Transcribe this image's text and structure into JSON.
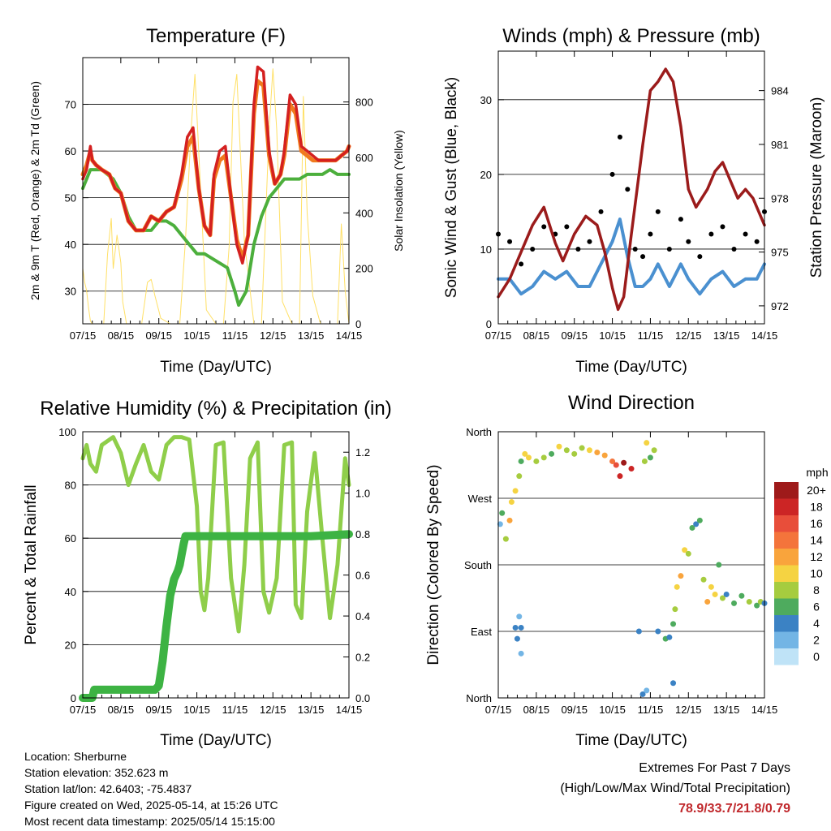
{
  "footer": {
    "location": "Location: Sherburne",
    "elevation": "Station elevation: 352.623 m",
    "latlon": "Station lat/lon: 42.6403; -75.4837",
    "created": "Figure created on Wed, 2025-05-14, at 15:26 UTC",
    "recent": "Most recent data timestamp: 2025/05/14 15:15:00",
    "extremes_title": "Extremes For Past 7 Days",
    "extremes_subtitle": "(High/Low/Max Wind/Total Precipitation)",
    "extremes_values": "78.9/33.7/21.8/0.79"
  },
  "chart_data": [
    {
      "type": "line",
      "title": "Temperature (F)",
      "xlabel": "Time (Day/UTC)",
      "ylabel": "2m & 9m T (Red, Orange) & 2m Td (Green)",
      "y2label": "Solar Insolation (Yellow)",
      "x_ticks": [
        "07/15",
        "08/15",
        "09/15",
        "10/15",
        "11/15",
        "12/15",
        "13/15",
        "14/15"
      ],
      "ylim": [
        23,
        80
      ],
      "y_ticks": [
        30,
        40,
        50,
        60,
        70
      ],
      "y2lim": [
        0,
        960
      ],
      "y2_ticks": [
        0,
        200,
        400,
        600,
        800
      ],
      "grid": "horizontal",
      "colors": {
        "t2m": "#d42020",
        "t9m": "#f07a1e",
        "td2m": "#4caf3c",
        "solar": "#ffe066"
      },
      "series": [
        {
          "key": "t2m",
          "x": [
            0,
            0.1,
            0.2,
            0.25,
            0.35,
            0.5,
            0.7,
            0.85,
            1.0,
            1.2,
            1.4,
            1.6,
            1.8,
            2.0,
            2.2,
            2.4,
            2.6,
            2.75,
            2.9,
            3.05,
            3.2,
            3.35,
            3.45,
            3.6,
            3.75,
            3.9,
            4.05,
            4.2,
            4.35,
            4.5,
            4.6,
            4.75,
            4.9,
            5.05,
            5.2,
            5.3,
            5.45,
            5.6,
            5.75,
            5.9,
            6.05,
            6.2,
            6.35,
            6.5,
            6.65,
            6.8,
            6.95,
            7.0
          ],
          "values": [
            54,
            56,
            61,
            58,
            57,
            56,
            55,
            52,
            51,
            45,
            43,
            43,
            46,
            45,
            47,
            48,
            55,
            63,
            65,
            52,
            44,
            42,
            55,
            60,
            61,
            50,
            40,
            36,
            42,
            70,
            78,
            77,
            60,
            53,
            55,
            60,
            72,
            70,
            61,
            60,
            59,
            58,
            58,
            58,
            58,
            59,
            60,
            61
          ]
        },
        {
          "key": "t9m",
          "x": [
            0,
            0.1,
            0.2,
            0.25,
            0.35,
            0.5,
            0.7,
            0.85,
            1.0,
            1.2,
            1.4,
            1.6,
            1.8,
            2.0,
            2.2,
            2.4,
            2.6,
            2.75,
            2.9,
            3.05,
            3.2,
            3.35,
            3.45,
            3.6,
            3.75,
            3.9,
            4.05,
            4.2,
            4.35,
            4.5,
            4.6,
            4.75,
            4.9,
            5.05,
            5.2,
            5.3,
            5.45,
            5.6,
            5.75,
            5.9,
            6.05,
            6.2,
            6.35,
            6.5,
            6.65,
            6.8,
            6.95,
            7.0
          ],
          "values": [
            55,
            57,
            60,
            58,
            57,
            56,
            55,
            52,
            51,
            45,
            43,
            43,
            46,
            45,
            47,
            48,
            54,
            61,
            63,
            52,
            44,
            42,
            54,
            58,
            59,
            50,
            41,
            37,
            42,
            68,
            75,
            74,
            59,
            53,
            55,
            59,
            70,
            68,
            60,
            59,
            58,
            58,
            58,
            58,
            58,
            59,
            60,
            61
          ]
        },
        {
          "key": "td2m",
          "x": [
            0,
            0.2,
            0.5,
            0.8,
            1.0,
            1.2,
            1.4,
            1.6,
            1.8,
            2.0,
            2.2,
            2.4,
            2.6,
            2.8,
            3.0,
            3.2,
            3.4,
            3.6,
            3.8,
            4.0,
            4.1,
            4.3,
            4.5,
            4.7,
            4.9,
            5.1,
            5.3,
            5.5,
            5.7,
            5.9,
            6.1,
            6.3,
            6.5,
            6.7,
            6.9,
            7.0
          ],
          "values": [
            52,
            56,
            56,
            54,
            51,
            46,
            43,
            43,
            43,
            45,
            45,
            44,
            42,
            40,
            38,
            38,
            37,
            36,
            35,
            30,
            27,
            30,
            40,
            46,
            50,
            52,
            54,
            54,
            54,
            55,
            55,
            55,
            56,
            55,
            55,
            55
          ]
        },
        {
          "key": "solar",
          "x": [
            0,
            0.05,
            0.1,
            0.15,
            0.2,
            0.25,
            0.35,
            0.55,
            0.65,
            0.75,
            0.8,
            0.9,
            1.0,
            1.05,
            1.15,
            1.3,
            1.55,
            1.7,
            1.8,
            1.9,
            2.05,
            2.3,
            2.55,
            2.7,
            2.85,
            2.95,
            3.05,
            3.25,
            3.5,
            3.7,
            3.85,
            3.95,
            4.05,
            4.25,
            4.5,
            4.7,
            4.9,
            5.0,
            5.1,
            5.25,
            5.5,
            5.7,
            5.8,
            5.9,
            6.05,
            6.25,
            6.5,
            6.7,
            6.8,
            6.9,
            7.0
          ],
          "values": [
            200,
            150,
            120,
            60,
            10,
            0,
            0,
            0,
            250,
            380,
            200,
            320,
            220,
            80,
            0,
            0,
            0,
            150,
            160,
            100,
            20,
            0,
            0,
            300,
            700,
            900,
            620,
            50,
            0,
            0,
            280,
            800,
            900,
            300,
            0,
            0,
            700,
            920,
            700,
            80,
            0,
            0,
            820,
            400,
            100,
            0,
            0,
            0,
            360,
            120,
            0
          ]
        }
      ]
    },
    {
      "type": "scatter",
      "title": "Winds (mph) & Pressure (mb)",
      "xlabel": "Time (Day/UTC)",
      "ylabel": "Sonic Wind & Gust (Blue, Black)",
      "y2label": "Station Pressure (Maroon)",
      "x_ticks": [
        "07/15",
        "08/15",
        "09/15",
        "10/15",
        "11/15",
        "12/15",
        "13/15",
        "14/15"
      ],
      "ylim": [
        0,
        36.5
      ],
      "y_ticks": [
        0,
        10,
        20,
        30
      ],
      "y2lim": [
        971,
        986.2
      ],
      "y2_ticks": [
        972,
        975,
        978,
        981,
        984
      ],
      "grid": "horizontal",
      "colors": {
        "wind": "#4a90d0",
        "gust": "#000000",
        "pressure": "#9b1b1b"
      },
      "series": [
        {
          "key": "gust",
          "x": [
            0,
            0.3,
            0.6,
            0.9,
            1.2,
            1.5,
            1.8,
            2.1,
            2.4,
            2.7,
            3.0,
            3.2,
            3.4,
            3.6,
            3.8,
            4.0,
            4.2,
            4.5,
            4.8,
            5.0,
            5.3,
            5.6,
            5.9,
            6.2,
            6.5,
            6.8,
            7.0
          ],
          "values": [
            12,
            11,
            8,
            10,
            13,
            12,
            13,
            10,
            11,
            15,
            20,
            25,
            18,
            10,
            9,
            12,
            15,
            10,
            14,
            11,
            9,
            12,
            13,
            10,
            12,
            11,
            15
          ]
        },
        {
          "key": "wind",
          "x": [
            0,
            0.3,
            0.6,
            0.9,
            1.2,
            1.5,
            1.8,
            2.1,
            2.4,
            2.7,
            3.0,
            3.2,
            3.4,
            3.6,
            3.8,
            4.0,
            4.2,
            4.5,
            4.8,
            5.0,
            5.3,
            5.6,
            5.9,
            6.2,
            6.5,
            6.8,
            7.0
          ],
          "values": [
            6,
            6,
            4,
            5,
            7,
            6,
            7,
            5,
            5,
            8,
            11,
            14,
            9,
            5,
            5,
            6,
            8,
            5,
            8,
            6,
            4,
            6,
            7,
            5,
            6,
            6,
            8
          ]
        },
        {
          "key": "pressure",
          "x": [
            0,
            0.3,
            0.6,
            0.9,
            1.2,
            1.5,
            1.7,
            2.0,
            2.3,
            2.6,
            2.8,
            3.0,
            3.15,
            3.3,
            3.5,
            3.8,
            4.0,
            4.2,
            4.4,
            4.6,
            4.8,
            5.0,
            5.2,
            5.5,
            5.7,
            5.9,
            6.1,
            6.3,
            6.5,
            6.7,
            6.9,
            7.0
          ],
          "values": [
            972.5,
            973.5,
            975,
            976.5,
            977.5,
            975.5,
            974.5,
            976,
            977,
            976.5,
            975,
            973,
            971.8,
            972.5,
            976,
            981,
            984,
            984.5,
            985.2,
            984.5,
            982,
            978.5,
            977.5,
            978.5,
            979.5,
            980,
            979,
            978,
            978.5,
            978,
            977,
            976.5
          ]
        }
      ]
    },
    {
      "type": "line",
      "title": "Relative Humidity (%) & Precipitation (in)",
      "xlabel": "Time (Day/UTC)",
      "ylabel": "Percent & Total Rainfall",
      "x_ticks": [
        "07/15",
        "08/15",
        "09/15",
        "10/15",
        "11/15",
        "12/15",
        "13/15",
        "14/15"
      ],
      "ylim": [
        0,
        100
      ],
      "y_ticks": [
        0,
        20,
        40,
        60,
        80,
        100
      ],
      "y2lim": [
        0,
        1.3
      ],
      "y2_ticks": [
        "0.0",
        "0.2",
        "0.4",
        "0.6",
        "0.8",
        "1.0",
        "1.2"
      ],
      "grid": "horizontal",
      "colors": {
        "rh": "#8fce4a",
        "precip": "#3db343"
      },
      "series": [
        {
          "key": "rh",
          "x": [
            0,
            0.1,
            0.2,
            0.35,
            0.5,
            0.8,
            1.0,
            1.2,
            1.4,
            1.6,
            1.8,
            2.0,
            2.2,
            2.4,
            2.6,
            2.8,
            3.0,
            3.1,
            3.2,
            3.3,
            3.5,
            3.7,
            3.9,
            4.1,
            4.25,
            4.4,
            4.6,
            4.75,
            4.9,
            5.1,
            5.3,
            5.5,
            5.6,
            5.75,
            5.9,
            6.1,
            6.3,
            6.5,
            6.7,
            6.9,
            7.0
          ],
          "values": [
            90,
            95,
            88,
            85,
            95,
            98,
            92,
            80,
            88,
            95,
            85,
            82,
            95,
            98,
            98,
            97,
            72,
            40,
            33,
            45,
            95,
            96,
            45,
            25,
            50,
            90,
            96,
            40,
            32,
            45,
            95,
            96,
            35,
            30,
            70,
            92,
            60,
            30,
            50,
            90,
            80
          ]
        },
        {
          "key": "precip",
          "x": [
            0,
            0.25,
            0.3,
            1.0,
            1.5,
            1.9,
            2.0,
            2.1,
            2.2,
            2.3,
            2.4,
            2.5,
            2.55,
            2.6,
            2.65,
            2.7,
            2.75,
            3.0,
            4.0,
            5.0,
            6.0,
            7.0
          ],
          "values": [
            0,
            0,
            0.04,
            0.04,
            0.04,
            0.04,
            0.06,
            0.18,
            0.35,
            0.5,
            0.58,
            0.62,
            0.65,
            0.7,
            0.75,
            0.79,
            0.79,
            0.79,
            0.79,
            0.79,
            0.79,
            0.8
          ]
        }
      ]
    },
    {
      "type": "scatter",
      "title": "Wind Direction",
      "xlabel": "Time (Day/UTC)",
      "ylabel": "Direction (Colored By Speed)",
      "x_ticks": [
        "07/15",
        "08/15",
        "09/15",
        "10/15",
        "11/15",
        "12/15",
        "13/15",
        "14/15"
      ],
      "y_ticks": [
        "North",
        "West",
        "South",
        "East",
        "North"
      ],
      "ylim": [
        0,
        360
      ],
      "grid": "horizontal",
      "legend": {
        "title": "mph",
        "labels": [
          "20+",
          "18",
          "16",
          "14",
          "12",
          "10",
          "8",
          "6",
          "4",
          "2",
          "0"
        ],
        "colors": [
          "#9e1a1a",
          "#cc2525",
          "#e84e3a",
          "#f4743b",
          "#f9a43c",
          "#f5d342",
          "#a6cc3f",
          "#4eab5e",
          "#3b82c4",
          "#73b5e5",
          "#bfe3f7"
        ]
      },
      "series": [
        {
          "key": "points",
          "x": [
            0.05,
            0.1,
            0.2,
            0.3,
            0.35,
            0.45,
            0.55,
            0.6,
            0.7,
            0.8,
            1.0,
            1.2,
            1.4,
            1.6,
            1.8,
            2.0,
            2.2,
            2.4,
            2.6,
            2.8,
            3.0,
            3.1,
            3.2,
            3.3,
            3.5,
            3.7,
            3.85,
            3.9,
            4.0,
            4.1,
            4.2,
            4.4,
            4.5,
            4.6,
            4.65,
            4.7,
            4.8,
            4.9,
            5.0,
            5.1,
            5.2,
            5.3,
            5.4,
            5.5,
            5.6,
            5.7,
            5.8,
            5.9,
            6.0,
            6.2,
            6.4,
            6.6,
            6.8,
            6.9,
            7.0,
            0.5,
            0.55,
            0.6,
            0.45,
            0.6,
            3.8,
            3.9,
            4.6
          ],
          "y": [
            235,
            250,
            215,
            240,
            265,
            280,
            300,
            320,
            330,
            325,
            320,
            325,
            330,
            340,
            335,
            330,
            338,
            335,
            332,
            328,
            320,
            315,
            300,
            318,
            310,
            90,
            320,
            345,
            325,
            335,
            90,
            80,
            82,
            100,
            120,
            150,
            165,
            200,
            195,
            230,
            235,
            240,
            160,
            130,
            150,
            140,
            180,
            135,
            140,
            128,
            138,
            130,
            125,
            130,
            128,
            80,
            110,
            95,
            95,
            60,
            5,
            10,
            20
          ],
          "values": [
            2,
            6,
            8,
            12,
            9,
            10,
            8,
            6,
            10,
            9,
            7,
            8,
            6,
            9,
            8,
            7,
            8,
            10,
            12,
            11,
            14,
            16,
            18,
            20,
            18,
            3,
            8,
            10,
            6,
            7,
            4,
            5,
            4,
            6,
            8,
            9,
            12,
            10,
            8,
            6,
            4,
            6,
            8,
            12,
            9,
            10,
            5,
            7,
            4,
            6,
            5,
            7,
            6,
            8,
            4,
            3,
            2,
            4,
            3,
            1,
            3,
            2,
            3
          ]
        }
      ]
    }
  ]
}
